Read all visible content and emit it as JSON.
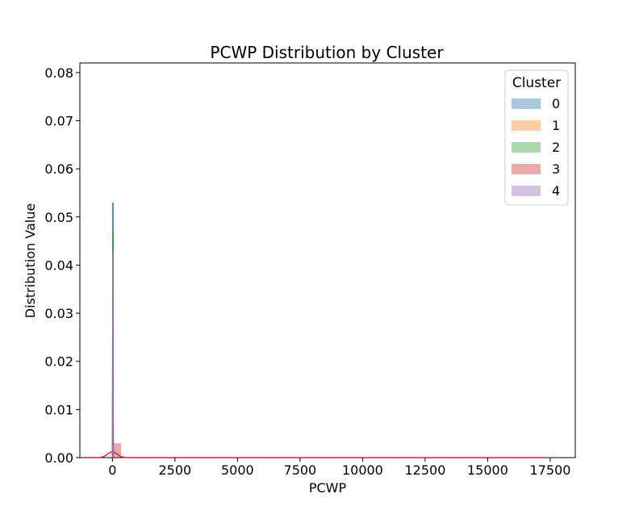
{
  "chart_data": {
    "type": "histogram",
    "title": "PCWP Distribution by Cluster",
    "xlabel": "PCWP",
    "ylabel": "Distribution Value",
    "xlim": [
      -1300,
      18500
    ],
    "ylim": [
      0,
      0.082
    ],
    "xticks": [
      0,
      2500,
      5000,
      7500,
      10000,
      12500,
      15000,
      17500
    ],
    "xtick_labels": [
      "0",
      "2500",
      "5000",
      "7500",
      "10000",
      "12500",
      "15000",
      "17500"
    ],
    "yticks": [
      0,
      0.01,
      0.02,
      0.03,
      0.04,
      0.05,
      0.06,
      0.07,
      0.08
    ],
    "ytick_labels": [
      "0.00",
      "0.01",
      "0.02",
      "0.03",
      "0.04",
      "0.05",
      "0.06",
      "0.07",
      "0.08"
    ],
    "grid": false,
    "legend": {
      "title": "Cluster",
      "placement": "top-right"
    },
    "series": [
      {
        "name": "0",
        "color": "#1f77b4",
        "bars": [
          {
            "x0": 5,
            "x1": 45,
            "y": 0.04
          }
        ],
        "kde": {
          "peak_x": 20,
          "peak_y": 0.053,
          "half_width": 12
        }
      },
      {
        "name": "1",
        "color": "#ff7f0e",
        "bars": [
          {
            "x0": 5,
            "x1": 45,
            "y": 0.036
          }
        ],
        "kde": {
          "peak_x": 20,
          "peak_y": 0.044,
          "half_width": 12
        }
      },
      {
        "name": "2",
        "color": "#2ca02c",
        "bars": [
          {
            "x0": 5,
            "x1": 45,
            "y": 0.038
          }
        ],
        "kde": {
          "peak_x": 20,
          "peak_y": 0.047,
          "half_width": 12
        }
      },
      {
        "name": "3",
        "color": "#d62728",
        "bars": [
          {
            "x0": 0,
            "x1": 350,
            "y": 0.003
          }
        ],
        "kde": {
          "peak_x": 0,
          "peak_y": 0.0012,
          "half_width": 420,
          "x_end": 17500
        }
      },
      {
        "name": "4",
        "color": "#9467bd",
        "bars": [
          {
            "x0": 5,
            "x1": 45,
            "y": 0.035
          }
        ],
        "kde": {
          "peak_x": 20,
          "peak_y": 0.043,
          "half_width": 12
        }
      }
    ]
  }
}
